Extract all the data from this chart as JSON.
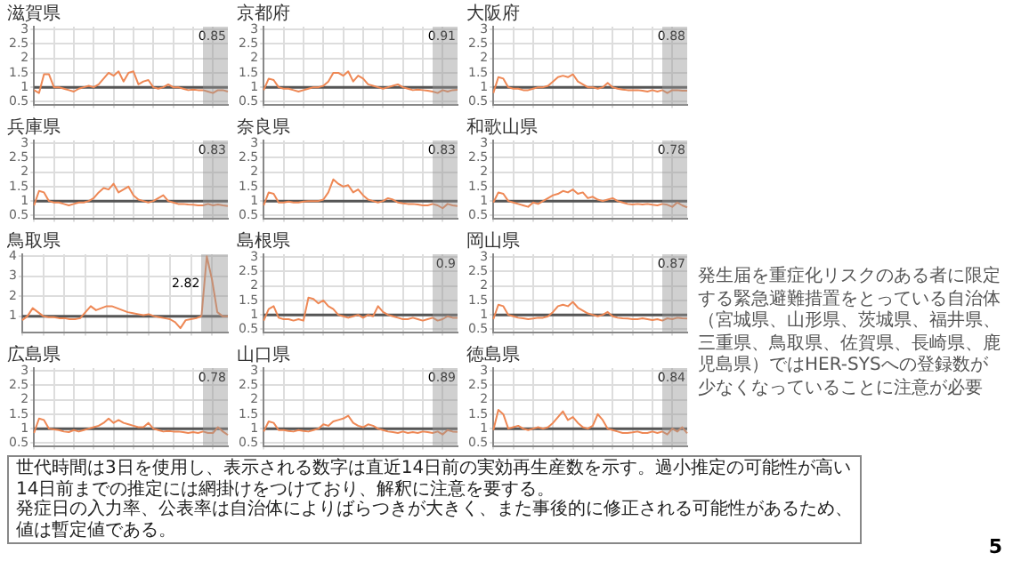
{
  "chart_data": [
    {
      "type": "line",
      "title": "滋賀県",
      "categories": [
        null,
        null,
        null,
        null,
        null,
        null,
        null,
        null,
        null,
        null,
        null,
        null,
        null,
        null,
        null,
        null,
        null,
        null,
        null,
        null,
        null,
        null,
        null,
        null,
        null,
        null,
        null,
        null,
        null,
        null,
        null,
        null,
        null,
        null,
        null,
        null,
        null,
        null,
        null,
        null
      ],
      "ylim": [
        0.4,
        3.1
      ],
      "yticks": [
        0.5,
        1.0,
        1.5,
        2.0,
        2.5,
        3.0
      ],
      "tick_labels": "y",
      "grid": true,
      "legend": false,
      "ref_lines": [
        {
          "axis": "y",
          "value": 1,
          "color": "#555555"
        }
      ],
      "annotations": [
        "0.85"
      ],
      "series": [
        {
          "color": "#ee8855",
          "values": [
            0.9,
            0.8,
            1.45,
            1.45,
            1.0,
            1.0,
            0.95,
            0.9,
            0.85,
            0.95,
            1.0,
            1.05,
            1.0,
            1.1,
            1.3,
            1.5,
            1.4,
            1.55,
            1.2,
            1.5,
            1.55,
            1.1,
            1.2,
            1.25,
            1.0,
            0.95,
            1.0,
            1.1,
            1.0,
            1.0,
            0.95,
            0.9,
            0.92,
            0.9,
            0.9,
            0.85,
            0.8,
            0.9,
            0.9,
            0.85
          ]
        }
      ]
    },
    {
      "type": "line",
      "title": "京都府",
      "categories": [
        null,
        null,
        null,
        null,
        null,
        null,
        null,
        null,
        null,
        null,
        null,
        null,
        null,
        null,
        null,
        null,
        null,
        null,
        null,
        null,
        null,
        null,
        null,
        null,
        null,
        null,
        null,
        null,
        null,
        null,
        null,
        null,
        null,
        null,
        null,
        null,
        null,
        null,
        null,
        null
      ],
      "ylim": [
        0.4,
        3.1
      ],
      "yticks": [
        0.5,
        1.0,
        1.5,
        2.0,
        2.5,
        3.0
      ],
      "tick_labels": "y",
      "grid": true,
      "legend": false,
      "ref_lines": [
        {
          "axis": "y",
          "value": 1,
          "color": "#555555"
        }
      ],
      "annotations": [
        "0.91"
      ],
      "series": [
        {
          "color": "#ee8855",
          "values": [
            0.9,
            1.3,
            1.25,
            1.0,
            0.95,
            0.95,
            0.9,
            0.85,
            0.9,
            0.95,
            1.0,
            1.0,
            1.05,
            1.2,
            1.5,
            1.5,
            1.4,
            1.55,
            1.2,
            1.4,
            1.3,
            1.1,
            1.05,
            1.0,
            0.95,
            1.0,
            1.05,
            1.1,
            1.0,
            0.95,
            0.9,
            0.92,
            0.9,
            0.88,
            0.85,
            0.8,
            0.9,
            0.85,
            0.9,
            0.91
          ]
        }
      ]
    },
    {
      "type": "line",
      "title": "大阪府",
      "categories": [
        null,
        null,
        null,
        null,
        null,
        null,
        null,
        null,
        null,
        null,
        null,
        null,
        null,
        null,
        null,
        null,
        null,
        null,
        null,
        null,
        null,
        null,
        null,
        null,
        null,
        null,
        null,
        null,
        null,
        null,
        null,
        null,
        null,
        null,
        null,
        null,
        null,
        null,
        null,
        null
      ],
      "ylim": [
        0.4,
        3.1
      ],
      "yticks": [
        0.5,
        1.0,
        1.5,
        2.0,
        2.5,
        3.0
      ],
      "tick_labels": "y",
      "grid": true,
      "legend": false,
      "ref_lines": [
        {
          "axis": "y",
          "value": 1,
          "color": "#555555"
        }
      ],
      "annotations": [
        "0.88"
      ],
      "series": [
        {
          "color": "#ee8855",
          "values": [
            0.8,
            1.35,
            1.3,
            1.0,
            0.95,
            0.95,
            0.9,
            0.9,
            0.95,
            1.0,
            1.0,
            1.05,
            1.2,
            1.35,
            1.4,
            1.35,
            1.45,
            1.2,
            1.1,
            1.0,
            1.0,
            0.95,
            1.0,
            1.15,
            1.0,
            0.95,
            0.92,
            0.9,
            0.9,
            0.9,
            0.88,
            0.85,
            0.9,
            0.85,
            0.9,
            0.8,
            0.9,
            0.9,
            0.88,
            0.88
          ]
        }
      ]
    },
    {
      "type": "line",
      "title": "兵庫県",
      "categories": [
        null,
        null,
        null,
        null,
        null,
        null,
        null,
        null,
        null,
        null,
        null,
        null,
        null,
        null,
        null,
        null,
        null,
        null,
        null,
        null,
        null,
        null,
        null,
        null,
        null,
        null,
        null,
        null,
        null,
        null,
        null,
        null,
        null,
        null,
        null,
        null,
        null,
        null,
        null,
        null
      ],
      "ylim": [
        0.4,
        3.1
      ],
      "yticks": [
        0.5,
        1.0,
        1.5,
        2.0,
        2.5,
        3.0
      ],
      "tick_labels": "y",
      "grid": true,
      "legend": false,
      "ref_lines": [
        {
          "axis": "y",
          "value": 1,
          "color": "#555555"
        }
      ],
      "annotations": [
        "0.83"
      ],
      "series": [
        {
          "color": "#ee8855",
          "values": [
            0.85,
            1.35,
            1.3,
            1.0,
            0.95,
            0.95,
            0.9,
            0.85,
            0.9,
            0.95,
            0.95,
            1.0,
            1.1,
            1.3,
            1.45,
            1.4,
            1.6,
            1.3,
            1.4,
            1.5,
            1.2,
            1.05,
            1.0,
            0.95,
            1.0,
            1.1,
            1.2,
            1.0,
            0.95,
            0.9,
            0.9,
            0.88,
            0.87,
            0.85,
            0.85,
            0.9,
            0.85,
            0.88,
            0.85,
            0.83
          ]
        }
      ]
    },
    {
      "type": "line",
      "title": "奈良県",
      "categories": [
        null,
        null,
        null,
        null,
        null,
        null,
        null,
        null,
        null,
        null,
        null,
        null,
        null,
        null,
        null,
        null,
        null,
        null,
        null,
        null,
        null,
        null,
        null,
        null,
        null,
        null,
        null,
        null,
        null,
        null,
        null,
        null,
        null,
        null,
        null,
        null,
        null,
        null,
        null,
        null
      ],
      "ylim": [
        0.4,
        3.1
      ],
      "yticks": [
        0.5,
        1.0,
        1.5,
        2.0,
        2.5,
        3.0
      ],
      "tick_labels": "y",
      "grid": true,
      "legend": false,
      "ref_lines": [
        {
          "axis": "y",
          "value": 1,
          "color": "#555555"
        }
      ],
      "annotations": [
        "0.83"
      ],
      "series": [
        {
          "color": "#ee8855",
          "values": [
            0.85,
            1.3,
            1.25,
            0.95,
            0.95,
            0.98,
            0.95,
            0.95,
            0.98,
            1.0,
            1.0,
            1.0,
            1.05,
            1.3,
            1.75,
            1.6,
            1.5,
            1.55,
            1.3,
            1.4,
            1.2,
            1.05,
            1.0,
            0.95,
            1.0,
            1.1,
            1.05,
            0.95,
            0.92,
            0.9,
            0.9,
            0.88,
            0.85,
            0.85,
            0.9,
            0.85,
            0.75,
            0.9,
            0.85,
            0.83
          ]
        }
      ]
    },
    {
      "type": "line",
      "title": "和歌山県",
      "categories": [
        null,
        null,
        null,
        null,
        null,
        null,
        null,
        null,
        null,
        null,
        null,
        null,
        null,
        null,
        null,
        null,
        null,
        null,
        null,
        null,
        null,
        null,
        null,
        null,
        null,
        null,
        null,
        null,
        null,
        null,
        null,
        null,
        null,
        null,
        null,
        null,
        null,
        null,
        null,
        null
      ],
      "ylim": [
        0.4,
        3.1
      ],
      "yticks": [
        0.5,
        1.0,
        1.5,
        2.0,
        2.5,
        3.0
      ],
      "tick_labels": "y",
      "grid": true,
      "legend": false,
      "ref_lines": [
        {
          "axis": "y",
          "value": 1,
          "color": "#555555"
        }
      ],
      "annotations": [
        "0.78"
      ],
      "series": [
        {
          "color": "#ee8855",
          "values": [
            0.95,
            1.3,
            1.25,
            1.0,
            0.95,
            0.9,
            0.85,
            0.8,
            0.95,
            0.9,
            1.0,
            1.1,
            1.2,
            1.25,
            1.35,
            1.3,
            1.4,
            1.25,
            1.3,
            1.1,
            1.15,
            1.05,
            1.0,
            1.05,
            1.1,
            1.0,
            0.95,
            0.9,
            0.88,
            0.9,
            0.88,
            0.9,
            0.87,
            0.85,
            0.9,
            0.87,
            0.8,
            0.95,
            0.85,
            0.78
          ]
        }
      ]
    },
    {
      "type": "line",
      "title": "鳥取県",
      "categories": [
        null,
        null,
        null,
        null,
        null,
        null,
        null,
        null,
        null,
        null,
        null,
        null,
        null,
        null,
        null,
        null,
        null,
        null,
        null,
        null,
        null,
        null,
        null,
        null,
        null,
        null,
        null,
        null,
        null,
        null,
        null,
        null,
        null,
        null,
        null,
        null,
        null,
        null,
        null,
        null
      ],
      "ylim": [
        0.2,
        4.1
      ],
      "yticks": [
        1,
        2,
        3,
        4
      ],
      "tick_labels": "y",
      "grid": true,
      "legend": false,
      "ref_lines": [
        {
          "axis": "y",
          "value": 1,
          "color": "#555555"
        }
      ],
      "annotations": [
        "2.82"
      ],
      "series": [
        {
          "color": "#ee8855",
          "values": [
            0.8,
            1.0,
            1.4,
            1.2,
            1.0,
            0.95,
            0.95,
            0.9,
            0.9,
            0.85,
            0.85,
            0.9,
            1.2,
            1.5,
            1.3,
            1.4,
            1.5,
            1.5,
            1.4,
            1.3,
            1.2,
            1.15,
            1.1,
            1.05,
            1.1,
            1.0,
            0.95,
            0.9,
            0.85,
            0.7,
            0.4,
            0.8,
            0.85,
            0.9,
            1.0,
            4.0,
            2.82,
            1.2,
            1.0,
            1.0
          ]
        }
      ]
    },
    {
      "type": "line",
      "title": "島根県",
      "categories": [
        null,
        null,
        null,
        null,
        null,
        null,
        null,
        null,
        null,
        null,
        null,
        null,
        null,
        null,
        null,
        null,
        null,
        null,
        null,
        null,
        null,
        null,
        null,
        null,
        null,
        null,
        null,
        null,
        null,
        null,
        null,
        null,
        null,
        null,
        null,
        null,
        null,
        null,
        null,
        null
      ],
      "ylim": [
        0.4,
        3.1
      ],
      "yticks": [
        0.5,
        1.0,
        1.5,
        2.0,
        2.5,
        3.0
      ],
      "tick_labels": "y",
      "grid": true,
      "legend": false,
      "ref_lines": [
        {
          "axis": "y",
          "value": 1,
          "color": "#555555"
        }
      ],
      "annotations": [
        "0.9"
      ],
      "series": [
        {
          "color": "#ee8855",
          "values": [
            0.8,
            1.2,
            1.3,
            0.9,
            0.85,
            0.85,
            0.8,
            0.85,
            0.8,
            1.6,
            1.55,
            1.4,
            1.5,
            1.3,
            1.2,
            1.0,
            0.95,
            0.9,
            0.95,
            1.0,
            0.9,
            1.0,
            0.95,
            1.3,
            1.1,
            1.0,
            0.95,
            0.9,
            0.85,
            0.85,
            0.9,
            0.85,
            0.8,
            0.85,
            0.9,
            0.8,
            0.85,
            0.95,
            0.9,
            0.9
          ]
        }
      ]
    },
    {
      "type": "line",
      "title": "岡山県",
      "categories": [
        null,
        null,
        null,
        null,
        null,
        null,
        null,
        null,
        null,
        null,
        null,
        null,
        null,
        null,
        null,
        null,
        null,
        null,
        null,
        null,
        null,
        null,
        null,
        null,
        null,
        null,
        null,
        null,
        null,
        null,
        null,
        null,
        null,
        null,
        null,
        null,
        null,
        null,
        null,
        null
      ],
      "ylim": [
        0.4,
        3.1
      ],
      "yticks": [
        0.5,
        1.0,
        1.5,
        2.0,
        2.5,
        3.0
      ],
      "tick_labels": "y",
      "grid": true,
      "legend": false,
      "ref_lines": [
        {
          "axis": "y",
          "value": 1,
          "color": "#555555"
        }
      ],
      "annotations": [
        "0.87"
      ],
      "series": [
        {
          "color": "#ee8855",
          "values": [
            0.85,
            1.35,
            1.3,
            1.0,
            0.95,
            0.9,
            0.88,
            0.85,
            0.87,
            0.9,
            0.9,
            0.95,
            1.1,
            1.3,
            1.35,
            1.3,
            1.45,
            1.25,
            1.15,
            1.05,
            1.0,
            0.95,
            1.0,
            1.1,
            0.95,
            0.9,
            0.88,
            0.87,
            0.85,
            0.85,
            0.88,
            0.85,
            0.82,
            0.85,
            0.8,
            0.88,
            0.85,
            0.9,
            0.88,
            0.87
          ]
        }
      ]
    },
    {
      "type": "line",
      "title": "広島県",
      "categories": [
        null,
        null,
        null,
        null,
        null,
        null,
        null,
        null,
        null,
        null,
        null,
        null,
        null,
        null,
        null,
        null,
        null,
        null,
        null,
        null,
        null,
        null,
        null,
        null,
        null,
        null,
        null,
        null,
        null,
        null,
        null,
        null,
        null,
        null,
        null,
        null,
        null,
        null,
        null,
        null
      ],
      "ylim": [
        0.4,
        3.1
      ],
      "yticks": [
        0.5,
        1.0,
        1.5,
        2.0,
        2.5,
        3.0
      ],
      "tick_labels": "y",
      "grid": true,
      "legend": false,
      "ref_lines": [
        {
          "axis": "y",
          "value": 1,
          "color": "#555555"
        }
      ],
      "annotations": [
        "0.78"
      ],
      "series": [
        {
          "color": "#ee8855",
          "values": [
            0.85,
            1.35,
            1.3,
            1.0,
            0.97,
            0.95,
            0.9,
            0.88,
            0.95,
            0.9,
            0.95,
            1.0,
            1.05,
            1.1,
            1.2,
            1.35,
            1.2,
            1.3,
            1.2,
            1.15,
            1.1,
            1.05,
            1.05,
            1.2,
            1.0,
            0.95,
            0.9,
            0.92,
            0.9,
            0.9,
            0.88,
            0.85,
            0.88,
            0.85,
            0.9,
            0.85,
            0.85,
            1.05,
            0.9,
            0.78
          ]
        }
      ]
    },
    {
      "type": "line",
      "title": "山口県",
      "categories": [
        null,
        null,
        null,
        null,
        null,
        null,
        null,
        null,
        null,
        null,
        null,
        null,
        null,
        null,
        null,
        null,
        null,
        null,
        null,
        null,
        null,
        null,
        null,
        null,
        null,
        null,
        null,
        null,
        null,
        null,
        null,
        null,
        null,
        null,
        null,
        null,
        null,
        null,
        null,
        null
      ],
      "ylim": [
        0.4,
        3.1
      ],
      "yticks": [
        0.5,
        1.0,
        1.5,
        2.0,
        2.5,
        3.0
      ],
      "tick_labels": "y",
      "grid": true,
      "legend": false,
      "ref_lines": [
        {
          "axis": "y",
          "value": 1,
          "color": "#555555"
        }
      ],
      "annotations": [
        "0.89"
      ],
      "series": [
        {
          "color": "#ee8855",
          "values": [
            0.9,
            1.25,
            1.2,
            0.95,
            0.95,
            0.92,
            0.9,
            0.95,
            0.92,
            0.9,
            0.95,
            1.0,
            1.15,
            1.1,
            1.25,
            1.3,
            1.35,
            1.45,
            1.2,
            1.1,
            1.05,
            1.15,
            1.1,
            1.0,
            0.95,
            0.9,
            0.88,
            0.85,
            0.9,
            0.85,
            0.88,
            0.85,
            0.9,
            0.88,
            0.85,
            0.9,
            0.8,
            0.95,
            0.9,
            0.89
          ]
        }
      ]
    },
    {
      "type": "line",
      "title": "徳島県",
      "categories": [
        null,
        null,
        null,
        null,
        null,
        null,
        null,
        null,
        null,
        null,
        null,
        null,
        null,
        null,
        null,
        null,
        null,
        null,
        null,
        null,
        null,
        null,
        null,
        null,
        null,
        null,
        null,
        null,
        null,
        null,
        null,
        null,
        null,
        null,
        null,
        null,
        null,
        null,
        null,
        null
      ],
      "ylim": [
        0.4,
        3.1
      ],
      "yticks": [
        0.5,
        1.0,
        1.5,
        2.0,
        2.5,
        3.0
      ],
      "tick_labels": "y",
      "grid": true,
      "legend": false,
      "ref_lines": [
        {
          "axis": "y",
          "value": 1,
          "color": "#555555"
        }
      ],
      "annotations": [
        "0.84"
      ],
      "series": [
        {
          "color": "#ee8855",
          "values": [
            0.95,
            1.65,
            1.5,
            1.0,
            1.05,
            1.1,
            1.0,
            0.95,
            1.0,
            1.05,
            1.0,
            1.05,
            1.2,
            1.4,
            1.6,
            1.3,
            1.4,
            1.2,
            1.05,
            1.0,
            1.1,
            1.5,
            1.3,
            1.0,
            0.95,
            0.9,
            0.85,
            0.85,
            0.87,
            0.9,
            0.85,
            0.85,
            0.9,
            0.85,
            0.9,
            0.8,
            1.0,
            0.9,
            1.05,
            0.84
          ]
        }
      ]
    },
    {
      "type": "other",
      "annotations": [
        "発生届を重症化リスクのある者に限定する緊急避難措置をとっている自治体（宮城県、山形県、茨城県、福井県、三重県、鳥取県、佐賀県、長崎県、鹿児島県）ではHER-SYSへの登録数が少なくなっていることに注意が必要",
        "世代時間は3日を使用し、表示される数字は直近14日前の実効再生産数を示す。過小推定の可能性が高い14日前までの推定には網掛けをつけており、解釈に注意を要する。",
        "発症日の入力率、公表率は自治体によりばらつきが大きく、また事後的に修正される可能性があるため、値は暫定値である。",
        "5"
      ]
    }
  ]
}
